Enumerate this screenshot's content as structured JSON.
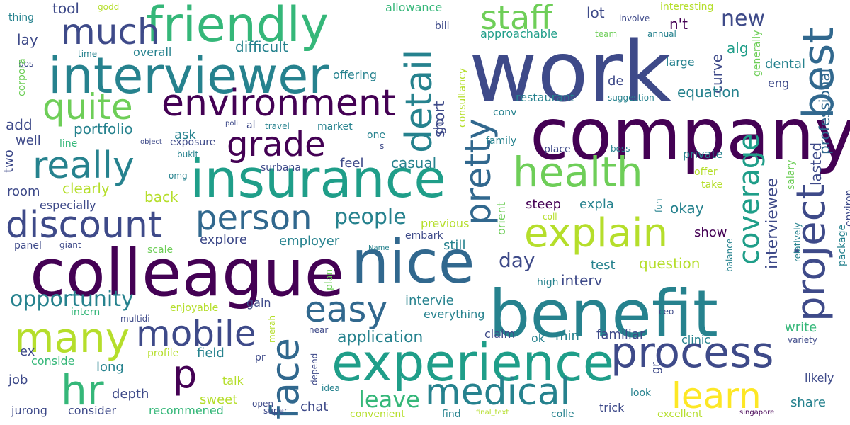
{
  "palette": {
    "deep_purple": "#440154",
    "indigo": "#482878",
    "slate_blue": "#3e4a89",
    "steel_blue": "#31688e",
    "teal": "#26828e",
    "sea_green": "#1f9e89",
    "green": "#35b779",
    "light_green": "#6ece58",
    "lime": "#b5de2b",
    "yellow": "#fde725"
  },
  "words": [
    {
      "t": "work",
      "c": "#3e4a89"
    },
    {
      "t": "company",
      "c": "#440154"
    },
    {
      "t": "benefit",
      "c": "#26828e"
    },
    {
      "t": "nice",
      "c": "#31688e"
    },
    {
      "t": "colleague",
      "c": "#440154"
    },
    {
      "t": "insurance",
      "c": "#1f9e89"
    },
    {
      "t": "friendly",
      "c": "#35b779"
    },
    {
      "t": "experience",
      "c": "#1f9e89"
    },
    {
      "t": "project",
      "c": "#3e4a89"
    },
    {
      "t": "best",
      "c": "#31688e"
    },
    {
      "t": "interviewer",
      "c": "#26828e"
    },
    {
      "t": "process",
      "c": "#3e4a89"
    },
    {
      "t": "health",
      "c": "#6ece58"
    },
    {
      "t": "explain",
      "c": "#b5de2b"
    },
    {
      "t": "discount",
      "c": "#3e4a89"
    },
    {
      "t": "environment",
      "c": "#440154"
    },
    {
      "t": "medical",
      "c": "#26828e"
    },
    {
      "t": "easy",
      "c": "#31688e"
    },
    {
      "t": "mobile",
      "c": "#3e4a89"
    },
    {
      "t": "p",
      "c": "#440154"
    },
    {
      "t": "person",
      "c": "#31688e"
    },
    {
      "t": "grade",
      "c": "#440154"
    },
    {
      "t": "really",
      "c": "#26828e"
    },
    {
      "t": "many",
      "c": "#b5de2b"
    },
    {
      "t": "face",
      "c": "#31688e"
    },
    {
      "t": "much",
      "c": "#3e4a89"
    },
    {
      "t": "quite",
      "c": "#6ece58"
    },
    {
      "t": "learn",
      "c": "#fde725"
    },
    {
      "t": "hr",
      "c": "#35b779"
    },
    {
      "t": "detail",
      "c": "#26828e"
    },
    {
      "t": "pretty",
      "c": "#31688e"
    },
    {
      "t": "coverage",
      "c": "#1f9e89"
    },
    {
      "t": "staff",
      "c": "#6ece58"
    },
    {
      "t": "opportunity",
      "c": "#26828e"
    },
    {
      "t": "leave",
      "c": "#35b779"
    },
    {
      "t": "people",
      "c": "#26828e"
    },
    {
      "t": "day",
      "c": "#3e4a89"
    },
    {
      "t": "new",
      "c": "#3e4a89"
    },
    {
      "t": "interviewee",
      "c": "#3e4a89"
    },
    {
      "t": "application",
      "c": "#26828e"
    },
    {
      "t": "professional",
      "c": "#31688e"
    },
    {
      "t": "lasted",
      "c": "#3e4a89"
    },
    {
      "t": "tool",
      "c": "#3e4a89"
    },
    {
      "t": "lot",
      "c": "#3e4a89"
    },
    {
      "t": "n't",
      "c": "#440154"
    },
    {
      "t": "curve",
      "c": "#3e4a89"
    },
    {
      "t": "alg",
      "c": "#1f9e89"
    },
    {
      "t": "dental",
      "c": "#26828e"
    },
    {
      "t": "difficult",
      "c": "#26828e"
    },
    {
      "t": "lay",
      "c": "#3e4a89"
    },
    {
      "t": "overall",
      "c": "#26828e"
    },
    {
      "t": "approachable",
      "c": "#1f9e89"
    },
    {
      "t": "allowance",
      "c": "#35b779"
    },
    {
      "t": "interesting",
      "c": "#b5de2b"
    },
    {
      "t": "annual",
      "c": "#26828e"
    },
    {
      "t": "involve",
      "c": "#3e4a89"
    },
    {
      "t": "team",
      "c": "#6ece58"
    },
    {
      "t": "large",
      "c": "#26828e"
    },
    {
      "t": "generally",
      "c": "#6ece58"
    },
    {
      "t": "godd",
      "c": "#b5de2b"
    },
    {
      "t": "thing",
      "c": "#26828e"
    },
    {
      "t": "time",
      "c": "#26828e"
    },
    {
      "t": "bos",
      "c": "#3e4a89"
    },
    {
      "t": "corpora",
      "c": "#6ece58"
    },
    {
      "t": "bill",
      "c": "#3e4a89"
    },
    {
      "t": "offering",
      "c": "#26828e"
    },
    {
      "t": "short",
      "c": "#3e4a89"
    },
    {
      "t": "consultancy",
      "c": "#b5de2b"
    },
    {
      "t": "restaurant",
      "c": "#26828e"
    },
    {
      "t": "suggestion",
      "c": "#26828e"
    },
    {
      "t": "de",
      "c": "#3e4a89"
    },
    {
      "t": "eng",
      "c": "#3e4a89"
    },
    {
      "t": "equation",
      "c": "#26828e"
    },
    {
      "t": "portfolio",
      "c": "#26828e"
    },
    {
      "t": "add",
      "c": "#3e4a89"
    },
    {
      "t": "go",
      "c": "#3e4a89"
    },
    {
      "t": "conv",
      "c": "#26828e"
    },
    {
      "t": "ask",
      "c": "#26828e"
    },
    {
      "t": "well",
      "c": "#3e4a89"
    },
    {
      "t": "line",
      "c": "#35b779"
    },
    {
      "t": "object",
      "c": "#3e4a89"
    },
    {
      "t": "exposure",
      "c": "#3e4a89"
    },
    {
      "t": "bukit",
      "c": "#26828e"
    },
    {
      "t": "poli",
      "c": "#3e4a89"
    },
    {
      "t": "al",
      "c": "#3e4a89"
    },
    {
      "t": "travel",
      "c": "#26828e"
    },
    {
      "t": "market",
      "c": "#26828e"
    },
    {
      "t": "one",
      "c": "#26828e"
    },
    {
      "t": "s",
      "c": "#3e4a89"
    },
    {
      "t": "family",
      "c": "#26828e"
    },
    {
      "t": "place",
      "c": "#3e4a89"
    },
    {
      "t": "boss",
      "c": "#26828e"
    },
    {
      "t": "private",
      "c": "#26828e"
    },
    {
      "t": "two",
      "c": "#3e4a89"
    },
    {
      "t": "casual",
      "c": "#26828e"
    },
    {
      "t": "feel",
      "c": "#3e4a89"
    },
    {
      "t": "surbana",
      "c": "#3e4a89"
    },
    {
      "t": "omg",
      "c": "#26828e"
    },
    {
      "t": "room",
      "c": "#3e4a89"
    },
    {
      "t": "clearly",
      "c": "#b5de2b"
    },
    {
      "t": "back",
      "c": "#b5de2b"
    },
    {
      "t": "especially",
      "c": "#3e4a89"
    },
    {
      "t": "orient",
      "c": "#6ece58"
    },
    {
      "t": "steep",
      "c": "#440154"
    },
    {
      "t": "expla",
      "c": "#26828e"
    },
    {
      "t": "okay",
      "c": "#26828e"
    },
    {
      "t": "offer",
      "c": "#b5de2b"
    },
    {
      "t": "take",
      "c": "#b5de2b"
    },
    {
      "t": "salary",
      "c": "#6ece58"
    },
    {
      "t": "fun",
      "c": "#26828e"
    },
    {
      "t": "coll",
      "c": "#b5de2b"
    },
    {
      "t": "environ",
      "c": "#3e4a89"
    },
    {
      "t": "previous",
      "c": "#b5de2b"
    },
    {
      "t": "embark",
      "c": "#3e4a89"
    },
    {
      "t": "explore",
      "c": "#3e4a89"
    },
    {
      "t": "employer",
      "c": "#26828e"
    },
    {
      "t": "still",
      "c": "#26828e"
    },
    {
      "t": "show",
      "c": "#440154"
    },
    {
      "t": "panel",
      "c": "#3e4a89"
    },
    {
      "t": "giant",
      "c": "#3e4a89"
    },
    {
      "t": "Name",
      "c": "#26828e"
    },
    {
      "t": "scale",
      "c": "#6ece58"
    },
    {
      "t": "test",
      "c": "#26828e"
    },
    {
      "t": "question",
      "c": "#b5de2b"
    },
    {
      "t": "relatively",
      "c": "#26828e"
    },
    {
      "t": "interv",
      "c": "#3e4a89"
    },
    {
      "t": "package",
      "c": "#26828e"
    },
    {
      "t": "plan",
      "c": "#6ece58"
    },
    {
      "t": "high",
      "c": "#26828e"
    },
    {
      "t": "balance",
      "c": "#26828e"
    },
    {
      "t": "intern",
      "c": "#35b779"
    },
    {
      "t": "enjoyable",
      "c": "#b5de2b"
    },
    {
      "t": "gain",
      "c": "#3e4a89"
    },
    {
      "t": "intervie",
      "c": "#26828e"
    },
    {
      "t": "everything",
      "c": "#26828e"
    },
    {
      "t": "multidi",
      "c": "#3e4a89"
    },
    {
      "t": "ceo",
      "c": "#3e4a89"
    },
    {
      "t": "near",
      "c": "#3e4a89"
    },
    {
      "t": "merah",
      "c": "#b5de2b"
    },
    {
      "t": "claim",
      "c": "#3e4a89"
    },
    {
      "t": "ok",
      "c": "#26828e"
    },
    {
      "t": "min",
      "c": "#26828e"
    },
    {
      "t": "familiar",
      "c": "#3e4a89"
    },
    {
      "t": "write",
      "c": "#35b779"
    },
    {
      "t": "ex",
      "c": "#3e4a89"
    },
    {
      "t": "profile",
      "c": "#b5de2b"
    },
    {
      "t": "field",
      "c": "#26828e"
    },
    {
      "t": "clinic",
      "c": "#26828e"
    },
    {
      "t": "variety",
      "c": "#3e4a89"
    },
    {
      "t": "conside",
      "c": "#35b779"
    },
    {
      "t": "pr",
      "c": "#3e4a89"
    },
    {
      "t": "depend",
      "c": "#3e4a89"
    },
    {
      "t": "long",
      "c": "#26828e"
    },
    {
      "t": "gr",
      "c": "#3e4a89"
    },
    {
      "t": "likely",
      "c": "#3e4a89"
    },
    {
      "t": "job",
      "c": "#3e4a89"
    },
    {
      "t": "talk",
      "c": "#b5de2b"
    },
    {
      "t": "depth",
      "c": "#3e4a89"
    },
    {
      "t": "sweet",
      "c": "#b5de2b"
    },
    {
      "t": "idea",
      "c": "#26828e"
    },
    {
      "t": "look",
      "c": "#26828e"
    },
    {
      "t": "share",
      "c": "#26828e"
    },
    {
      "t": "jurong",
      "c": "#3e4a89"
    },
    {
      "t": "consider",
      "c": "#3e4a89"
    },
    {
      "t": "recommened",
      "c": "#35b779"
    },
    {
      "t": "open",
      "c": "#3e4a89"
    },
    {
      "t": "chat",
      "c": "#3e4a89"
    },
    {
      "t": "super",
      "c": "#3e4a89"
    },
    {
      "t": "convenient",
      "c": "#b5de2b"
    },
    {
      "t": "find",
      "c": "#26828e"
    },
    {
      "t": "final_text",
      "c": "#b5de2b"
    },
    {
      "t": "colle",
      "c": "#26828e"
    },
    {
      "t": "trick",
      "c": "#3e4a89"
    },
    {
      "t": "excellent",
      "c": "#b5de2b"
    },
    {
      "t": "singapore",
      "c": "#440154"
    }
  ]
}
